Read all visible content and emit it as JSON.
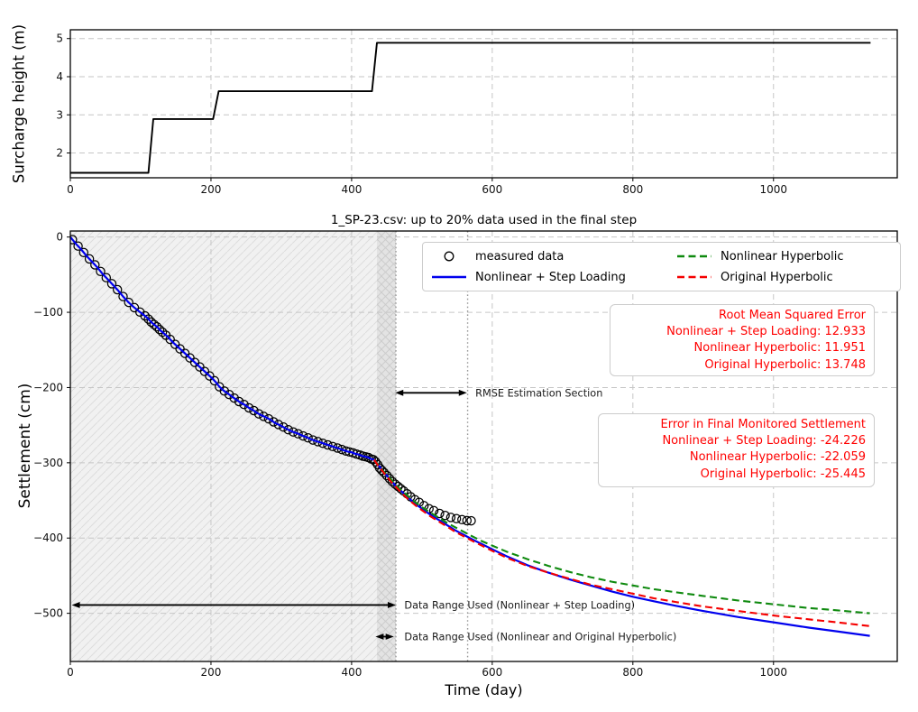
{
  "colors": {
    "step_line": "#000000",
    "measured": "#000000",
    "nonlinear_step": "#0000ee",
    "nonlinear_hyp": "#0f8a0f",
    "original_hyp": "#f50000",
    "annotation_text": "#1a1a1a",
    "red_text": "#ff0000",
    "grid": "#c6c6c6",
    "span_light_fill": "#f1f1f1",
    "span_dark_fill": "#e3e3e3",
    "hatch_light": "#dddddd",
    "hatch_dark": "#cccccc",
    "dotted_line": "#999999",
    "spine": "#000000"
  },
  "chart_data": [
    {
      "type": "line",
      "title": "",
      "xlabel": "",
      "ylabel": "Surcharge height (m)",
      "xlim": [
        0,
        1176
      ],
      "ylim": [
        1.35,
        5.23
      ],
      "xtick_values": [
        0,
        200,
        400,
        600,
        800,
        1000
      ],
      "xtick_labels": [
        "0",
        "200",
        "400",
        "600",
        "800",
        "1000"
      ],
      "ytick_values": [
        2,
        3,
        4,
        5
      ],
      "ytick_labels": [
        "2",
        "3",
        "4",
        "5"
      ],
      "grid": true,
      "series_name": "surcharge-height-steps",
      "step_points": [
        [
          0,
          1.48
        ],
        [
          111,
          1.48
        ],
        [
          118,
          2.89
        ],
        [
          203,
          2.89
        ],
        [
          211,
          3.62
        ],
        [
          429,
          3.62
        ],
        [
          436,
          4.89
        ],
        [
          1138,
          4.89
        ]
      ]
    },
    {
      "type": "scatter+line",
      "title": "1_SP-23.csv: up to 20% data used in the final step",
      "xlabel": "Time (day)",
      "ylabel": "Settlement (cm)",
      "xlim": [
        0,
        1176
      ],
      "ylim": [
        -564,
        8
      ],
      "xtick_values": [
        0,
        200,
        400,
        600,
        800,
        1000
      ],
      "xtick_labels": [
        "0",
        "200",
        "400",
        "600",
        "800",
        "1000"
      ],
      "ytick_values": [
        0,
        -100,
        -200,
        -300,
        -400,
        -500
      ],
      "ytick_labels": [
        "0",
        "−100",
        "−200",
        "−300",
        "−400",
        "−500"
      ],
      "grid": true,
      "spans": {
        "light": [
          0,
          436
        ],
        "dark": [
          436,
          463
        ]
      },
      "dotted_vlines": [
        463,
        565
      ],
      "measured_path": [
        [
          0,
          0
        ],
        [
          8,
          -9
        ],
        [
          15,
          -16
        ],
        [
          22,
          -24
        ],
        [
          30,
          -32
        ],
        [
          38,
          -40
        ],
        [
          45,
          -48
        ],
        [
          52,
          -55
        ],
        [
          60,
          -63
        ],
        [
          68,
          -71
        ],
        [
          75,
          -79
        ],
        [
          82,
          -86
        ],
        [
          90,
          -93
        ],
        [
          98,
          -99
        ],
        [
          105,
          -104
        ],
        [
          109,
          -107
        ],
        [
          112,
          -110
        ],
        [
          116,
          -114
        ],
        [
          120,
          -117
        ],
        [
          124,
          -120
        ],
        [
          128,
          -124
        ],
        [
          133,
          -128
        ],
        [
          139,
          -133
        ],
        [
          146,
          -140
        ],
        [
          153,
          -146
        ],
        [
          160,
          -152
        ],
        [
          167,
          -158
        ],
        [
          174,
          -164
        ],
        [
          181,
          -170
        ],
        [
          188,
          -176
        ],
        [
          195,
          -182
        ],
        [
          202,
          -188
        ],
        [
          207,
          -193
        ],
        [
          212,
          -199
        ],
        [
          218,
          -204
        ],
        [
          224,
          -208
        ],
        [
          230,
          -212
        ],
        [
          236,
          -216
        ],
        [
          242,
          -220
        ],
        [
          248,
          -223
        ],
        [
          254,
          -227
        ],
        [
          260,
          -230
        ],
        [
          266,
          -234
        ],
        [
          272,
          -237
        ],
        [
          279,
          -240
        ],
        [
          285,
          -243
        ],
        [
          291,
          -247
        ],
        [
          298,
          -250
        ],
        [
          304,
          -253
        ],
        [
          310,
          -256
        ],
        [
          317,
          -259
        ],
        [
          323,
          -261
        ],
        [
          330,
          -264
        ],
        [
          336,
          -266
        ],
        [
          343,
          -269
        ],
        [
          349,
          -271
        ],
        [
          356,
          -273
        ],
        [
          362,
          -275
        ],
        [
          369,
          -277
        ],
        [
          375,
          -279
        ],
        [
          382,
          -281
        ],
        [
          388,
          -283
        ],
        [
          394,
          -285
        ],
        [
          400,
          -286
        ],
        [
          405,
          -288
        ],
        [
          410,
          -289
        ],
        [
          415,
          -291
        ],
        [
          420,
          -292
        ],
        [
          424,
          -293
        ],
        [
          428,
          -295
        ],
        [
          432,
          -296
        ],
        [
          436,
          -301
        ],
        [
          440,
          -307
        ],
        [
          444,
          -311
        ],
        [
          448,
          -315
        ],
        [
          452,
          -319
        ],
        [
          456,
          -323
        ],
        [
          460,
          -327
        ],
        [
          464,
          -330
        ],
        [
          468,
          -333
        ],
        [
          472,
          -336
        ],
        [
          476,
          -339
        ],
        [
          480,
          -342
        ],
        [
          485,
          -346
        ],
        [
          490,
          -349
        ],
        [
          495,
          -352
        ],
        [
          500,
          -355
        ],
        [
          506,
          -359
        ],
        [
          512,
          -362
        ],
        [
          518,
          -364
        ],
        [
          524,
          -367
        ],
        [
          530,
          -369
        ],
        [
          536,
          -371
        ],
        [
          542,
          -373
        ],
        [
          548,
          -374
        ],
        [
          554,
          -375
        ],
        [
          560,
          -376
        ],
        [
          565,
          -377
        ],
        [
          570,
          -377
        ]
      ],
      "measured_marker_times": [
        3,
        11,
        19,
        27,
        35,
        43,
        51,
        59,
        67,
        75,
        83,
        91,
        99,
        106,
        111,
        115,
        119,
        123,
        127,
        131,
        136,
        142,
        149,
        156,
        163,
        170,
        177,
        184,
        191,
        198,
        205,
        212,
        219,
        226,
        233,
        240,
        247,
        254,
        261,
        268,
        275,
        282,
        289,
        296,
        303,
        310,
        317,
        324,
        331,
        338,
        345,
        352,
        359,
        366,
        373,
        380,
        386,
        392,
        397,
        402,
        407,
        412,
        416,
        420,
        424,
        428,
        431,
        434,
        437,
        440,
        443,
        446,
        450,
        454,
        458,
        462,
        466,
        470,
        474,
        479,
        484,
        490,
        496,
        503,
        510,
        517,
        525,
        533,
        541,
        549,
        557,
        564,
        570
      ],
      "models": {
        "nonlinear_step": [
          [
            432,
            -296
          ],
          [
            438,
            -303
          ],
          [
            444,
            -310
          ],
          [
            450,
            -317
          ],
          [
            456,
            -323
          ],
          [
            462,
            -330
          ],
          [
            470,
            -337
          ],
          [
            480,
            -346
          ],
          [
            490,
            -354
          ],
          [
            500,
            -361
          ],
          [
            512,
            -369
          ],
          [
            524,
            -376
          ],
          [
            536,
            -383
          ],
          [
            548,
            -390
          ],
          [
            560,
            -396
          ],
          [
            570,
            -401
          ],
          [
            585,
            -408
          ],
          [
            600,
            -415
          ],
          [
            620,
            -424
          ],
          [
            650,
            -436
          ],
          [
            680,
            -446
          ],
          [
            710,
            -455
          ],
          [
            740,
            -463
          ],
          [
            770,
            -471
          ],
          [
            800,
            -478
          ],
          [
            830,
            -484
          ],
          [
            861,
            -490
          ],
          [
            900,
            -497
          ],
          [
            950,
            -505
          ],
          [
            1000,
            -512
          ],
          [
            1050,
            -519
          ],
          [
            1090,
            -524
          ],
          [
            1137,
            -530
          ]
        ],
        "nonlinear_hyp": [
          [
            432,
            -296
          ],
          [
            438,
            -303
          ],
          [
            444,
            -310
          ],
          [
            450,
            -316
          ],
          [
            456,
            -322
          ],
          [
            462,
            -329
          ],
          [
            470,
            -336
          ],
          [
            480,
            -344
          ],
          [
            490,
            -352
          ],
          [
            500,
            -359
          ],
          [
            512,
            -366
          ],
          [
            524,
            -373
          ],
          [
            536,
            -380
          ],
          [
            548,
            -386
          ],
          [
            560,
            -392
          ],
          [
            570,
            -397
          ],
          [
            585,
            -404
          ],
          [
            600,
            -410
          ],
          [
            620,
            -418
          ],
          [
            650,
            -428
          ],
          [
            680,
            -437
          ],
          [
            710,
            -445
          ],
          [
            740,
            -452
          ],
          [
            770,
            -458
          ],
          [
            800,
            -463
          ],
          [
            830,
            -468
          ],
          [
            861,
            -472
          ],
          [
            900,
            -477
          ],
          [
            950,
            -483
          ],
          [
            1000,
            -488
          ],
          [
            1050,
            -493
          ],
          [
            1090,
            -496
          ],
          [
            1137,
            -500
          ]
        ],
        "original_hyp": [
          [
            432,
            -296
          ],
          [
            438,
            -304
          ],
          [
            444,
            -311
          ],
          [
            450,
            -318
          ],
          [
            456,
            -325
          ],
          [
            462,
            -331
          ],
          [
            470,
            -339
          ],
          [
            480,
            -348
          ],
          [
            490,
            -356
          ],
          [
            500,
            -363
          ],
          [
            512,
            -371
          ],
          [
            524,
            -378
          ],
          [
            536,
            -385
          ],
          [
            548,
            -392
          ],
          [
            560,
            -398
          ],
          [
            570,
            -403
          ],
          [
            585,
            -410
          ],
          [
            600,
            -417
          ],
          [
            620,
            -426
          ],
          [
            650,
            -437
          ],
          [
            680,
            -446
          ],
          [
            710,
            -454
          ],
          [
            740,
            -462
          ],
          [
            770,
            -468
          ],
          [
            800,
            -474
          ],
          [
            830,
            -480
          ],
          [
            861,
            -485
          ],
          [
            900,
            -491
          ],
          [
            950,
            -497
          ],
          [
            1000,
            -503
          ],
          [
            1050,
            -508
          ],
          [
            1090,
            -512
          ],
          [
            1137,
            -517
          ]
        ]
      }
    }
  ],
  "legend": {
    "items": [
      {
        "label": "measured data",
        "type": "circle-marker"
      },
      {
        "label": "Nonlinear + Step Loading",
        "type": "solid-line"
      },
      {
        "label": "Nonlinear Hyperbolic",
        "type": "dashed-line"
      },
      {
        "label": "Original Hyperbolic",
        "type": "dashed-line"
      }
    ]
  },
  "rmse_box": {
    "lines": [
      "Root Mean Squared Error",
      "Nonlinear + Step Loading: 12.933",
      "Nonlinear Hyperbolic: 11.951",
      "Original Hyperbolic: 13.748"
    ]
  },
  "error_box": {
    "lines": [
      "Error in Final Monitored Settlement",
      "Nonlinear + Step Loading: -24.226",
      "Nonlinear Hyperbolic: -22.059",
      "Original Hyperbolic: -25.445"
    ]
  },
  "annotations": {
    "rmse_section": {
      "label": "RMSE Estimation Section",
      "arrow_t": [
        462,
        564
      ],
      "s": -207,
      "label_t": 576
    },
    "range_step": {
      "label": "Data Range Used (Nonlinear + Step Loading)",
      "arrow_t": [
        2,
        463
      ],
      "s": -489,
      "label_t": 475
    },
    "range_hyp": {
      "label": "Data Range Used (Nonlinear and Original Hyperbolic)",
      "arrow_t": [
        434,
        460
      ],
      "s": -531,
      "label_t": 475
    }
  }
}
